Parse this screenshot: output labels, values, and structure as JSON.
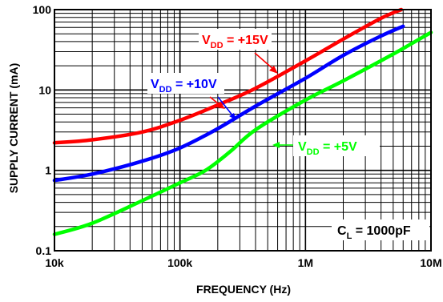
{
  "chart_data": {
    "type": "line",
    "xlabel": "FREQUENCY (Hz)",
    "ylabel": "SUPPLY CURRENT (mA)",
    "x_scale": "log",
    "y_scale": "log",
    "xlim": [
      10000,
      10000000
    ],
    "ylim": [
      0.1,
      100
    ],
    "grid": true,
    "x_ticks": [
      {
        "value": 10000,
        "label": "10k"
      },
      {
        "value": 100000,
        "label": "100k"
      },
      {
        "value": 1000000,
        "label": "1M"
      },
      {
        "value": 10000000,
        "label": "10M"
      }
    ],
    "y_ticks": [
      {
        "value": 0.1,
        "label": "0.1"
      },
      {
        "value": 1,
        "label": "1"
      },
      {
        "value": 10,
        "label": "10"
      },
      {
        "value": 100,
        "label": "100"
      }
    ],
    "series": [
      {
        "name": "+15V",
        "label_main": "V",
        "label_sub": "DD",
        "label_rest": " = +15V",
        "color": "#ff0000",
        "x": [
          10000,
          20000,
          50000,
          100000,
          200000,
          400000,
          1000000,
          2000000,
          4000000,
          5800000
        ],
        "y": [
          2.2,
          2.4,
          3.0,
          4.2,
          6.5,
          10.5,
          23,
          43,
          78,
          100
        ]
      },
      {
        "name": "+10V",
        "label_main": "V",
        "label_sub": "DD",
        "label_rest": " = +10V",
        "color": "#0000ff",
        "x": [
          10000,
          20000,
          50000,
          100000,
          200000,
          400000,
          1000000,
          2000000,
          4000000,
          6000000
        ],
        "y": [
          0.75,
          0.9,
          1.3,
          1.9,
          3.3,
          6.3,
          14,
          27,
          47,
          62
        ]
      },
      {
        "name": "+5V",
        "label_main": "V",
        "label_sub": "DD",
        "label_rest": " = +5V",
        "color": "#00ff00",
        "x": [
          10000,
          20000,
          50000,
          100000,
          160000,
          250000,
          400000,
          1000000,
          2000000,
          5000000,
          10000000
        ],
        "y": [
          0.16,
          0.22,
          0.42,
          0.7,
          1.0,
          1.7,
          3.2,
          7.5,
          13,
          28,
          52
        ]
      }
    ],
    "annotations": [
      {
        "main": "C",
        "sub": "L",
        "rest": " = 1000pF"
      }
    ]
  }
}
